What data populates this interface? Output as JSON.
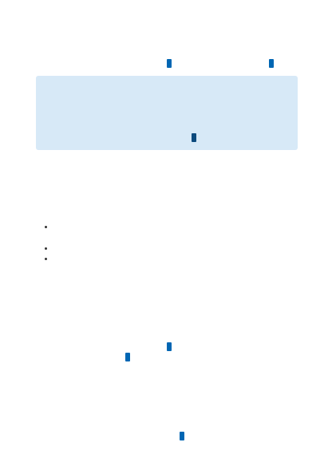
{
  "colors": {
    "page_background": "#ffffff",
    "notice_background": "#d7e9f7",
    "link_marker": "#0066b3",
    "link_marker_dark": "#0c4a7d",
    "bullet": "#333333"
  },
  "header_links": [
    {
      "icon": "link-marker-icon"
    },
    {
      "icon": "link-marker-icon"
    }
  ],
  "notice": {
    "link": {
      "icon": "link-marker-icon"
    }
  },
  "bullet_list": {
    "items": [
      {
        "icon": "bullet-icon"
      },
      {
        "icon": "bullet-icon"
      },
      {
        "icon": "bullet-icon"
      }
    ]
  },
  "body_links": [
    {
      "icon": "link-marker-icon"
    },
    {
      "icon": "link-marker-icon"
    }
  ],
  "footer_link": {
    "icon": "link-marker-icon"
  }
}
